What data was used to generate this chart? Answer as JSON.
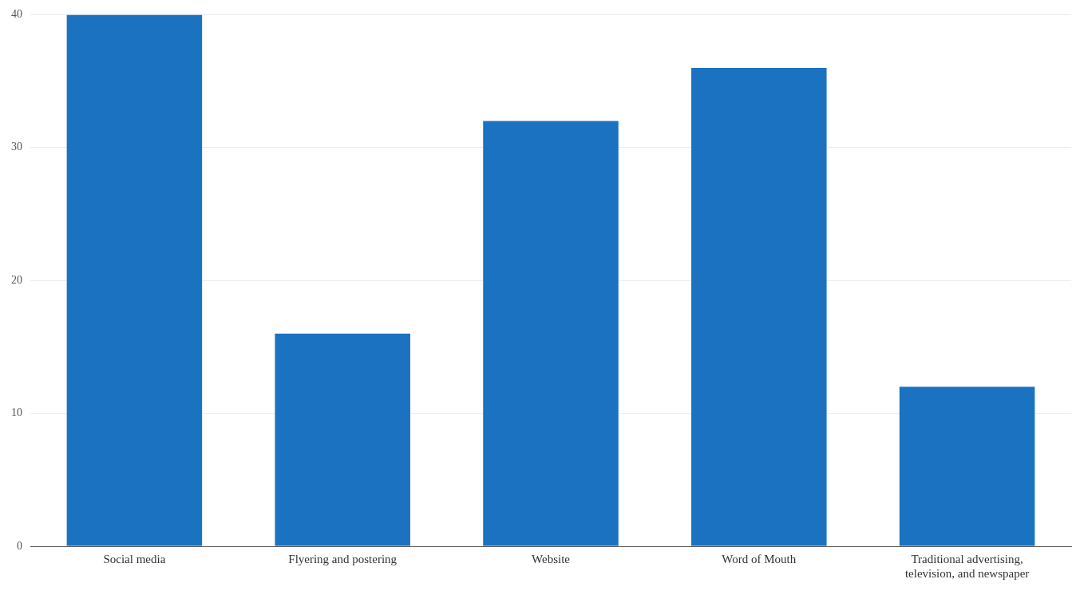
{
  "chart_data": {
    "type": "bar",
    "categories": [
      "Social media",
      "Flyering and postering",
      "Website",
      "Word of Mouth",
      "Traditional advertising, television, and newspaper"
    ],
    "values": [
      40,
      16,
      32,
      36,
      12
    ],
    "color": "#1b72c0",
    "ylim": [
      0,
      40
    ],
    "yticks": [
      0,
      10,
      20,
      30,
      40
    ],
    "grid": "y"
  }
}
